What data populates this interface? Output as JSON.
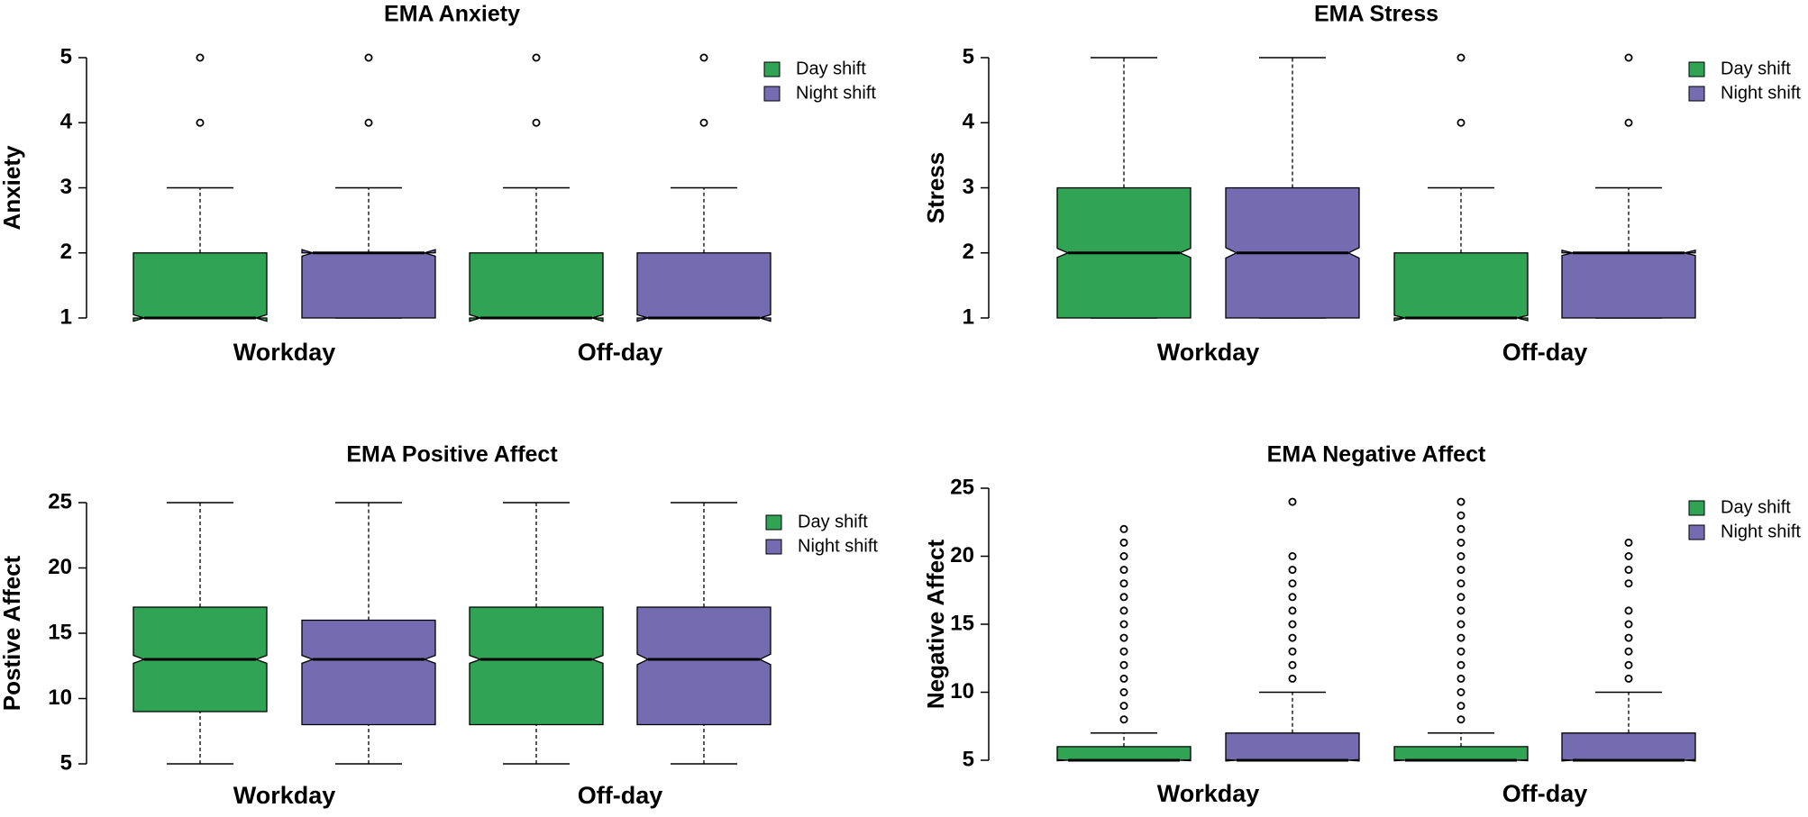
{
  "chart_data": [
    {
      "type": "box",
      "title": "EMA Anxiety",
      "y_label": "Anxiety",
      "categories": [
        "Workday",
        "Off-day"
      ],
      "ylim": [
        1,
        5
      ],
      "yticks": [
        1,
        2,
        3,
        4,
        5
      ],
      "series": [
        {
          "name": "Day shift",
          "color": "#31a354",
          "boxes": [
            {
              "whisker_low": 1,
              "q1": 1,
              "median": 1,
              "q3": 2,
              "whisker_high": 3,
              "notch_low": 0.95,
              "notch_high": 1.05,
              "outliers": [
                4,
                5
              ]
            },
            {
              "whisker_low": 1,
              "q1": 1,
              "median": 1,
              "q3": 2,
              "whisker_high": 3,
              "notch_low": 0.95,
              "notch_high": 1.05,
              "outliers": [
                4,
                5
              ]
            }
          ]
        },
        {
          "name": "Night shift",
          "color": "#756bb1",
          "boxes": [
            {
              "whisker_low": 1,
              "q1": 1,
              "median": 2,
              "q3": 2,
              "whisker_high": 3,
              "notch_low": 1.95,
              "notch_high": 2.05,
              "outliers": [
                4,
                5
              ]
            },
            {
              "whisker_low": 1,
              "q1": 1,
              "median": 1,
              "q3": 2,
              "whisker_high": 3,
              "notch_low": 0.95,
              "notch_high": 1.05,
              "outliers": [
                4,
                5
              ]
            }
          ]
        }
      ]
    },
    {
      "type": "box",
      "title": "EMA Stress",
      "y_label": "Stress",
      "categories": [
        "Workday",
        "Off-day"
      ],
      "ylim": [
        1,
        5
      ],
      "yticks": [
        1,
        2,
        3,
        4,
        5
      ],
      "series": [
        {
          "name": "Day shift",
          "color": "#31a354",
          "boxes": [
            {
              "whisker_low": 1,
              "q1": 1,
              "median": 2,
              "q3": 3,
              "whisker_high": 5,
              "notch_low": 1.93,
              "notch_high": 2.07,
              "outliers": []
            },
            {
              "whisker_low": 1,
              "q1": 1,
              "median": 1,
              "q3": 2,
              "whisker_high": 3,
              "notch_low": 0.96,
              "notch_high": 1.04,
              "outliers": [
                4,
                5
              ]
            }
          ]
        },
        {
          "name": "Night shift",
          "color": "#756bb1",
          "boxes": [
            {
              "whisker_low": 1,
              "q1": 1,
              "median": 2,
              "q3": 3,
              "whisker_high": 5,
              "notch_low": 1.92,
              "notch_high": 2.08,
              "outliers": []
            },
            {
              "whisker_low": 1,
              "q1": 1,
              "median": 2,
              "q3": 2,
              "whisker_high": 3,
              "notch_low": 1.96,
              "notch_high": 2.04,
              "outliers": [
                4,
                5
              ]
            }
          ]
        }
      ]
    },
    {
      "type": "box",
      "title": "EMA Positive Affect",
      "y_label": "Postive Affect",
      "categories": [
        "Workday",
        "Off-day"
      ],
      "ylim": [
        5,
        25
      ],
      "yticks": [
        5,
        10,
        15,
        20,
        25
      ],
      "series": [
        {
          "name": "Day shift",
          "color": "#31a354",
          "boxes": [
            {
              "whisker_low": 5,
              "q1": 9,
              "median": 13,
              "q3": 17,
              "whisker_high": 25,
              "notch_low": 12.7,
              "notch_high": 13.3,
              "outliers": []
            },
            {
              "whisker_low": 5,
              "q1": 8,
              "median": 13,
              "q3": 17,
              "whisker_high": 25,
              "notch_low": 12.7,
              "notch_high": 13.3,
              "outliers": []
            }
          ]
        },
        {
          "name": "Night shift",
          "color": "#756bb1",
          "boxes": [
            {
              "whisker_low": 5,
              "q1": 8,
              "median": 13,
              "q3": 16,
              "whisker_high": 25,
              "notch_low": 12.7,
              "notch_high": 13.3,
              "outliers": []
            },
            {
              "whisker_low": 5,
              "q1": 8,
              "median": 13,
              "q3": 17,
              "whisker_high": 25,
              "notch_low": 12.6,
              "notch_high": 13.4,
              "outliers": []
            }
          ]
        }
      ]
    },
    {
      "type": "box",
      "title": "EMA Negative Affect",
      "y_label": "Negative Affect",
      "categories": [
        "Workday",
        "Off-day"
      ],
      "ylim": [
        5,
        25
      ],
      "yticks": [
        5,
        10,
        15,
        20,
        25
      ],
      "series": [
        {
          "name": "Day shift",
          "color": "#31a354",
          "boxes": [
            {
              "whisker_low": 5,
              "q1": 5,
              "median": 5,
              "q3": 6,
              "whisker_high": 7,
              "notch_low": 4.96,
              "notch_high": 5.04,
              "outliers": [
                8,
                9,
                10,
                11,
                12,
                13,
                14,
                15,
                16,
                17,
                18,
                19,
                20,
                21,
                22
              ]
            },
            {
              "whisker_low": 5,
              "q1": 5,
              "median": 5,
              "q3": 6,
              "whisker_high": 7,
              "notch_low": 4.96,
              "notch_high": 5.04,
              "outliers": [
                8,
                9,
                10,
                11,
                12,
                13,
                14,
                15,
                16,
                17,
                18,
                19,
                20,
                21,
                22,
                23,
                24
              ]
            }
          ]
        },
        {
          "name": "Night shift",
          "color": "#756bb1",
          "boxes": [
            {
              "whisker_low": 5,
              "q1": 5,
              "median": 5,
              "q3": 7,
              "whisker_high": 10,
              "notch_low": 4.95,
              "notch_high": 5.05,
              "outliers": [
                11,
                12,
                13,
                14,
                15,
                16,
                17,
                18,
                19,
                20,
                24
              ]
            },
            {
              "whisker_low": 5,
              "q1": 5,
              "median": 5,
              "q3": 7,
              "whisker_high": 10,
              "notch_low": 4.95,
              "notch_high": 5.05,
              "outliers": [
                11,
                12,
                13,
                14,
                15,
                16,
                18,
                19,
                20,
                21
              ]
            }
          ]
        }
      ]
    }
  ]
}
